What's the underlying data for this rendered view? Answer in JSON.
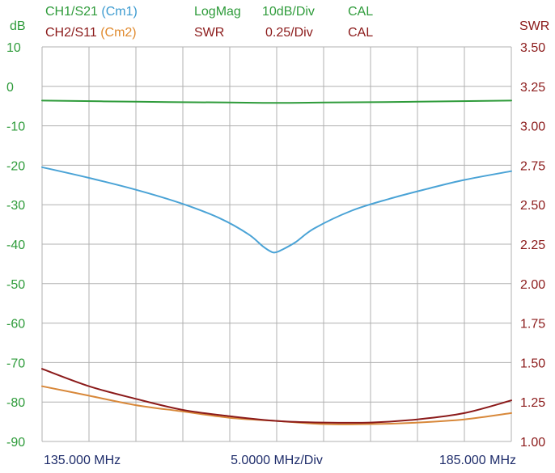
{
  "header": {
    "ch1_label": "CH1/S21",
    "ch1_marker": "(Cm1)",
    "ch1_format": "LogMag",
    "ch1_scale": "10dB/Div",
    "ch1_cal": "CAL",
    "ch2_label": "CH2/S11",
    "ch2_marker": "(Cm2)",
    "ch2_format": "SWR",
    "ch2_scale": "0.25/Div",
    "ch2_cal": "CAL",
    "left_unit": "dB",
    "right_unit": "SWR"
  },
  "chart_data": {
    "type": "line",
    "title": "",
    "x_labels": {
      "start": "135.000 MHz",
      "center": "5.0000 MHz/Div",
      "stop": "185.000 MHz"
    },
    "xlim": [
      135,
      185
    ],
    "ylim_left": [
      -90,
      10
    ],
    "ylim_right": [
      1.0,
      3.5
    ],
    "left_ticks": [
      "10",
      "0",
      "-10",
      "-20",
      "-30",
      "-40",
      "-50",
      "-60",
      "-70",
      "-80",
      "-90"
    ],
    "right_ticks": [
      "3.50",
      "3.25",
      "3.00",
      "2.75",
      "2.50",
      "2.25",
      "2.00",
      "1.75",
      "1.50",
      "1.25",
      "1.00"
    ],
    "grid": true,
    "colors": {
      "grid": "#b0b0b0",
      "left_axis_text": "#2e9b3a",
      "right_axis_text": "#8b1a1a",
      "bottom_axis_text": "#1f2d6b",
      "ch1_green": "#2e9b3a",
      "cm1_blue": "#4aa3d6",
      "ch2_red": "#8b1a1a",
      "cm2_orange": "#d8883a"
    },
    "series": [
      {
        "name": "CH1/S21",
        "axis": "left",
        "color": "#2e9b3a",
        "x": [
          135,
          145,
          155,
          160,
          165,
          175,
          185
        ],
        "y": [
          -3.6,
          -3.9,
          -4.1,
          -4.2,
          -4.1,
          -3.9,
          -3.6
        ]
      },
      {
        "name": "Cm1",
        "axis": "left",
        "color": "#4aa3d6",
        "x": [
          135,
          140,
          145,
          150,
          154,
          157,
          158.5,
          159.5,
          160,
          160.5,
          162,
          164,
          168,
          172,
          176,
          180,
          185
        ],
        "y": [
          -20.5,
          -23.2,
          -26.2,
          -29.8,
          -33.5,
          -37.5,
          -40.5,
          -42,
          -42,
          -41.5,
          -39.5,
          -36,
          -31.5,
          -28.5,
          -26,
          -23.7,
          -21.5
        ]
      },
      {
        "name": "CH2/S11",
        "axis": "right",
        "color": "#8b1a1a",
        "x": [
          135,
          140,
          145,
          150,
          155,
          160,
          165,
          170,
          175,
          180,
          185
        ],
        "y": [
          1.46,
          1.35,
          1.27,
          1.2,
          1.16,
          1.13,
          1.12,
          1.12,
          1.14,
          1.18,
          1.26
        ]
      },
      {
        "name": "Cm2",
        "axis": "right",
        "color": "#d8883a",
        "x": [
          135,
          140,
          145,
          150,
          155,
          160,
          165,
          170,
          175,
          180,
          185
        ],
        "y": [
          1.35,
          1.29,
          1.23,
          1.19,
          1.15,
          1.13,
          1.11,
          1.11,
          1.12,
          1.14,
          1.18
        ]
      }
    ]
  }
}
